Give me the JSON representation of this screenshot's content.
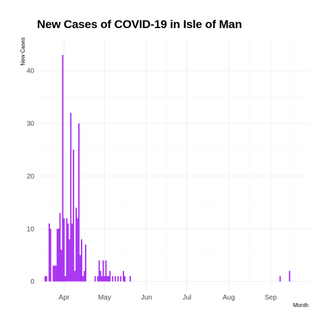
{
  "chart_data": {
    "type": "bar",
    "title": "New Cases of COVID-19 in Isle of Man",
    "xlabel": "Month",
    "ylabel": "New Cases",
    "bar_color": "#a020f0",
    "grid": true,
    "ylim": [
      -2,
      46
    ],
    "yticks": [
      0,
      10,
      20,
      30,
      40
    ],
    "xlim": [
      "2020-03-14",
      "2020-09-30"
    ],
    "xticks": [
      {
        "label": "Apr",
        "date": "2020-04-01"
      },
      {
        "label": "May",
        "date": "2020-05-01"
      },
      {
        "label": "Jun",
        "date": "2020-06-01"
      },
      {
        "label": "Jul",
        "date": "2020-07-01"
      },
      {
        "label": "Aug",
        "date": "2020-08-01"
      },
      {
        "label": "Sep",
        "date": "2020-09-01"
      }
    ],
    "x": [
      "2020-03-18",
      "2020-03-19",
      "2020-03-20",
      "2020-03-21",
      "2020-03-22",
      "2020-03-23",
      "2020-03-24",
      "2020-03-25",
      "2020-03-26",
      "2020-03-27",
      "2020-03-28",
      "2020-03-29",
      "2020-03-30",
      "2020-03-31",
      "2020-04-01",
      "2020-04-02",
      "2020-04-03",
      "2020-04-04",
      "2020-04-05",
      "2020-04-06",
      "2020-04-07",
      "2020-04-08",
      "2020-04-09",
      "2020-04-10",
      "2020-04-11",
      "2020-04-12",
      "2020-04-13",
      "2020-04-14",
      "2020-04-15",
      "2020-04-16",
      "2020-04-17",
      "2020-04-18",
      "2020-04-19",
      "2020-04-20",
      "2020-04-24",
      "2020-04-26",
      "2020-04-27",
      "2020-04-28",
      "2020-04-29",
      "2020-04-30",
      "2020-05-01",
      "2020-05-02",
      "2020-05-03",
      "2020-05-04",
      "2020-05-05",
      "2020-05-07",
      "2020-05-08",
      "2020-05-09",
      "2020-05-11",
      "2020-05-13",
      "2020-05-15",
      "2020-05-16",
      "2020-05-20",
      "2020-09-08",
      "2020-09-15"
    ],
    "values": [
      1,
      1,
      0,
      11,
      10,
      0,
      3,
      3,
      3,
      10,
      10,
      13,
      6,
      43,
      12,
      1,
      12,
      11,
      8,
      32,
      11,
      25,
      2,
      14,
      12,
      30,
      5,
      8,
      1,
      2,
      7,
      0,
      0,
      0,
      1,
      1,
      4,
      2,
      1,
      4,
      1,
      4,
      1,
      1,
      2,
      1,
      0,
      1,
      1,
      1,
      2,
      1,
      1,
      1,
      2
    ]
  }
}
